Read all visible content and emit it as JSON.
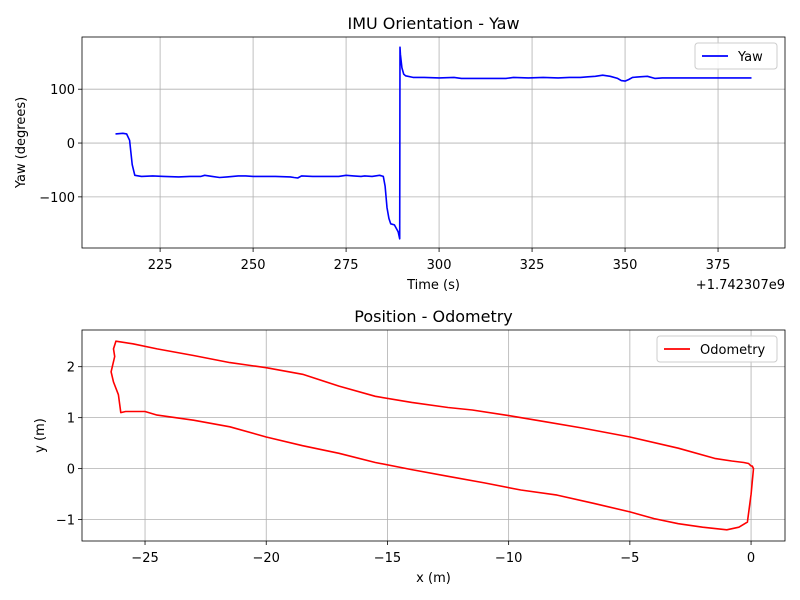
{
  "chart_data": [
    {
      "type": "line",
      "title": "IMU Orientation - Yaw",
      "xlabel": "Time (s)",
      "ylabel": "Yaw (degrees)",
      "x_offset_label": "+1.742307e9",
      "xlim": [
        204,
        393
      ],
      "ylim": [
        -195,
        197
      ],
      "xticks": [
        225,
        250,
        275,
        300,
        325,
        350,
        375
      ],
      "yticks": [
        -100,
        0,
        100
      ],
      "grid": true,
      "legend": "top-right",
      "series": [
        {
          "name": "Yaw",
          "color": "#0000ff",
          "x": [
            213,
            215,
            216,
            216.8,
            217.5,
            218.2,
            220,
            223,
            226,
            230,
            233,
            236,
            237,
            239,
            241,
            243,
            246,
            248,
            250,
            253,
            256,
            260,
            261,
            262,
            263,
            266,
            270,
            273,
            275,
            277,
            279,
            280,
            282,
            284,
            285,
            285.5,
            286,
            286.5,
            287,
            288,
            289,
            289.4,
            289.5,
            289.6,
            290,
            290.5,
            291,
            293,
            296,
            300,
            304,
            306,
            308,
            310,
            315,
            318,
            320,
            324,
            328,
            332,
            335,
            338,
            340,
            342,
            344,
            346,
            348,
            349,
            350,
            351,
            352,
            354,
            356,
            358,
            360,
            365,
            370,
            375,
            380,
            384
          ],
          "y": [
            17,
            18,
            17,
            5,
            -40,
            -60,
            -62,
            -61,
            -62,
            -63,
            -62,
            -62,
            -60,
            -62,
            -64,
            -63,
            -61,
            -61,
            -62,
            -62,
            -62,
            -63,
            -64,
            -65,
            -61,
            -62,
            -62,
            -62,
            -60,
            -61,
            -62,
            -61,
            -62,
            -60,
            -62,
            -80,
            -120,
            -140,
            -150,
            -152,
            -165,
            -178,
            178,
            165,
            140,
            128,
            125,
            122,
            122,
            121,
            122,
            120,
            120,
            120,
            120,
            120,
            122,
            121,
            122,
            121,
            122,
            122,
            123,
            124,
            126,
            124,
            120,
            116,
            115,
            118,
            122,
            123,
            124,
            120,
            121,
            121,
            121,
            121,
            121,
            121
          ]
        }
      ]
    },
    {
      "type": "line",
      "title": "Position - Odometry",
      "xlabel": "x (m)",
      "ylabel": "y (m)",
      "xlim": [
        -27.6,
        1.4
      ],
      "ylim": [
        -1.42,
        2.72
      ],
      "xticks": [
        -25,
        -20,
        -15,
        -10,
        -5,
        0
      ],
      "yticks": [
        -1,
        0,
        1,
        2
      ],
      "grid": true,
      "legend": "top-right",
      "series": [
        {
          "name": "Odometry",
          "color": "#ff0000",
          "x": [
            0,
            -0.1,
            -0.3,
            -0.8,
            -1.5,
            -3,
            -5,
            -7,
            -8.5,
            -10,
            -11.5,
            -12.5,
            -14,
            -15.5,
            -17,
            -18.5,
            -20,
            -21.5,
            -23,
            -24.5,
            -25.5,
            -26.2,
            -26.3,
            -26.25,
            -26.4,
            -26.3,
            -26.1,
            -26.0,
            -25.8,
            -25.5,
            -25,
            -24.5,
            -23,
            -21.5,
            -20,
            -18.5,
            -17,
            -15.5,
            -14,
            -12.5,
            -11,
            -9.5,
            -8,
            -6.5,
            -5,
            -4,
            -3,
            -2,
            -1,
            -0.5,
            -0.15,
            0,
            0.1,
            0.05,
            0
          ],
          "y": [
            0.05,
            0.1,
            0.12,
            0.15,
            0.2,
            0.4,
            0.62,
            0.8,
            0.92,
            1.04,
            1.15,
            1.2,
            1.3,
            1.42,
            1.62,
            1.85,
            1.98,
            2.08,
            2.22,
            2.35,
            2.45,
            2.5,
            2.35,
            2.2,
            1.9,
            1.7,
            1.45,
            1.1,
            1.12,
            1.12,
            1.12,
            1.05,
            0.95,
            0.82,
            0.62,
            0.45,
            0.3,
            0.12,
            -0.02,
            -0.15,
            -0.28,
            -0.42,
            -0.52,
            -0.68,
            -0.85,
            -0.98,
            -1.08,
            -1.15,
            -1.2,
            -1.15,
            -1.05,
            -0.5,
            0,
            0.05,
            0.05
          ]
        }
      ]
    }
  ]
}
